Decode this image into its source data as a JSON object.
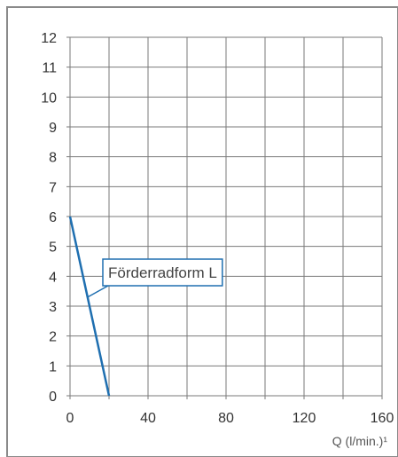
{
  "chart_data": {
    "type": "line",
    "title": "",
    "xlabel": "Q (l/min.)¹",
    "ylabel": "",
    "xlim": [
      0,
      160
    ],
    "ylim": [
      0,
      12
    ],
    "x_ticks": [
      0,
      40,
      80,
      120,
      160
    ],
    "x_tick_labels": [
      "0",
      "40",
      "80",
      "120",
      "160"
    ],
    "y_ticks": [
      0,
      1,
      2,
      3,
      4,
      5,
      6,
      7,
      8,
      9,
      10,
      11,
      12
    ],
    "y_tick_labels": [
      "0",
      "1",
      "2",
      "3",
      "4",
      "5",
      "6",
      "7",
      "8",
      "9",
      "10",
      "11",
      "12"
    ],
    "grid": true,
    "series": [
      {
        "name": "Förderradform L",
        "color": "#1f6fb0",
        "x": [
          0,
          20
        ],
        "y": [
          6,
          0
        ]
      }
    ],
    "annotations": [
      {
        "text": "Förderradform L",
        "series": 0
      }
    ]
  }
}
